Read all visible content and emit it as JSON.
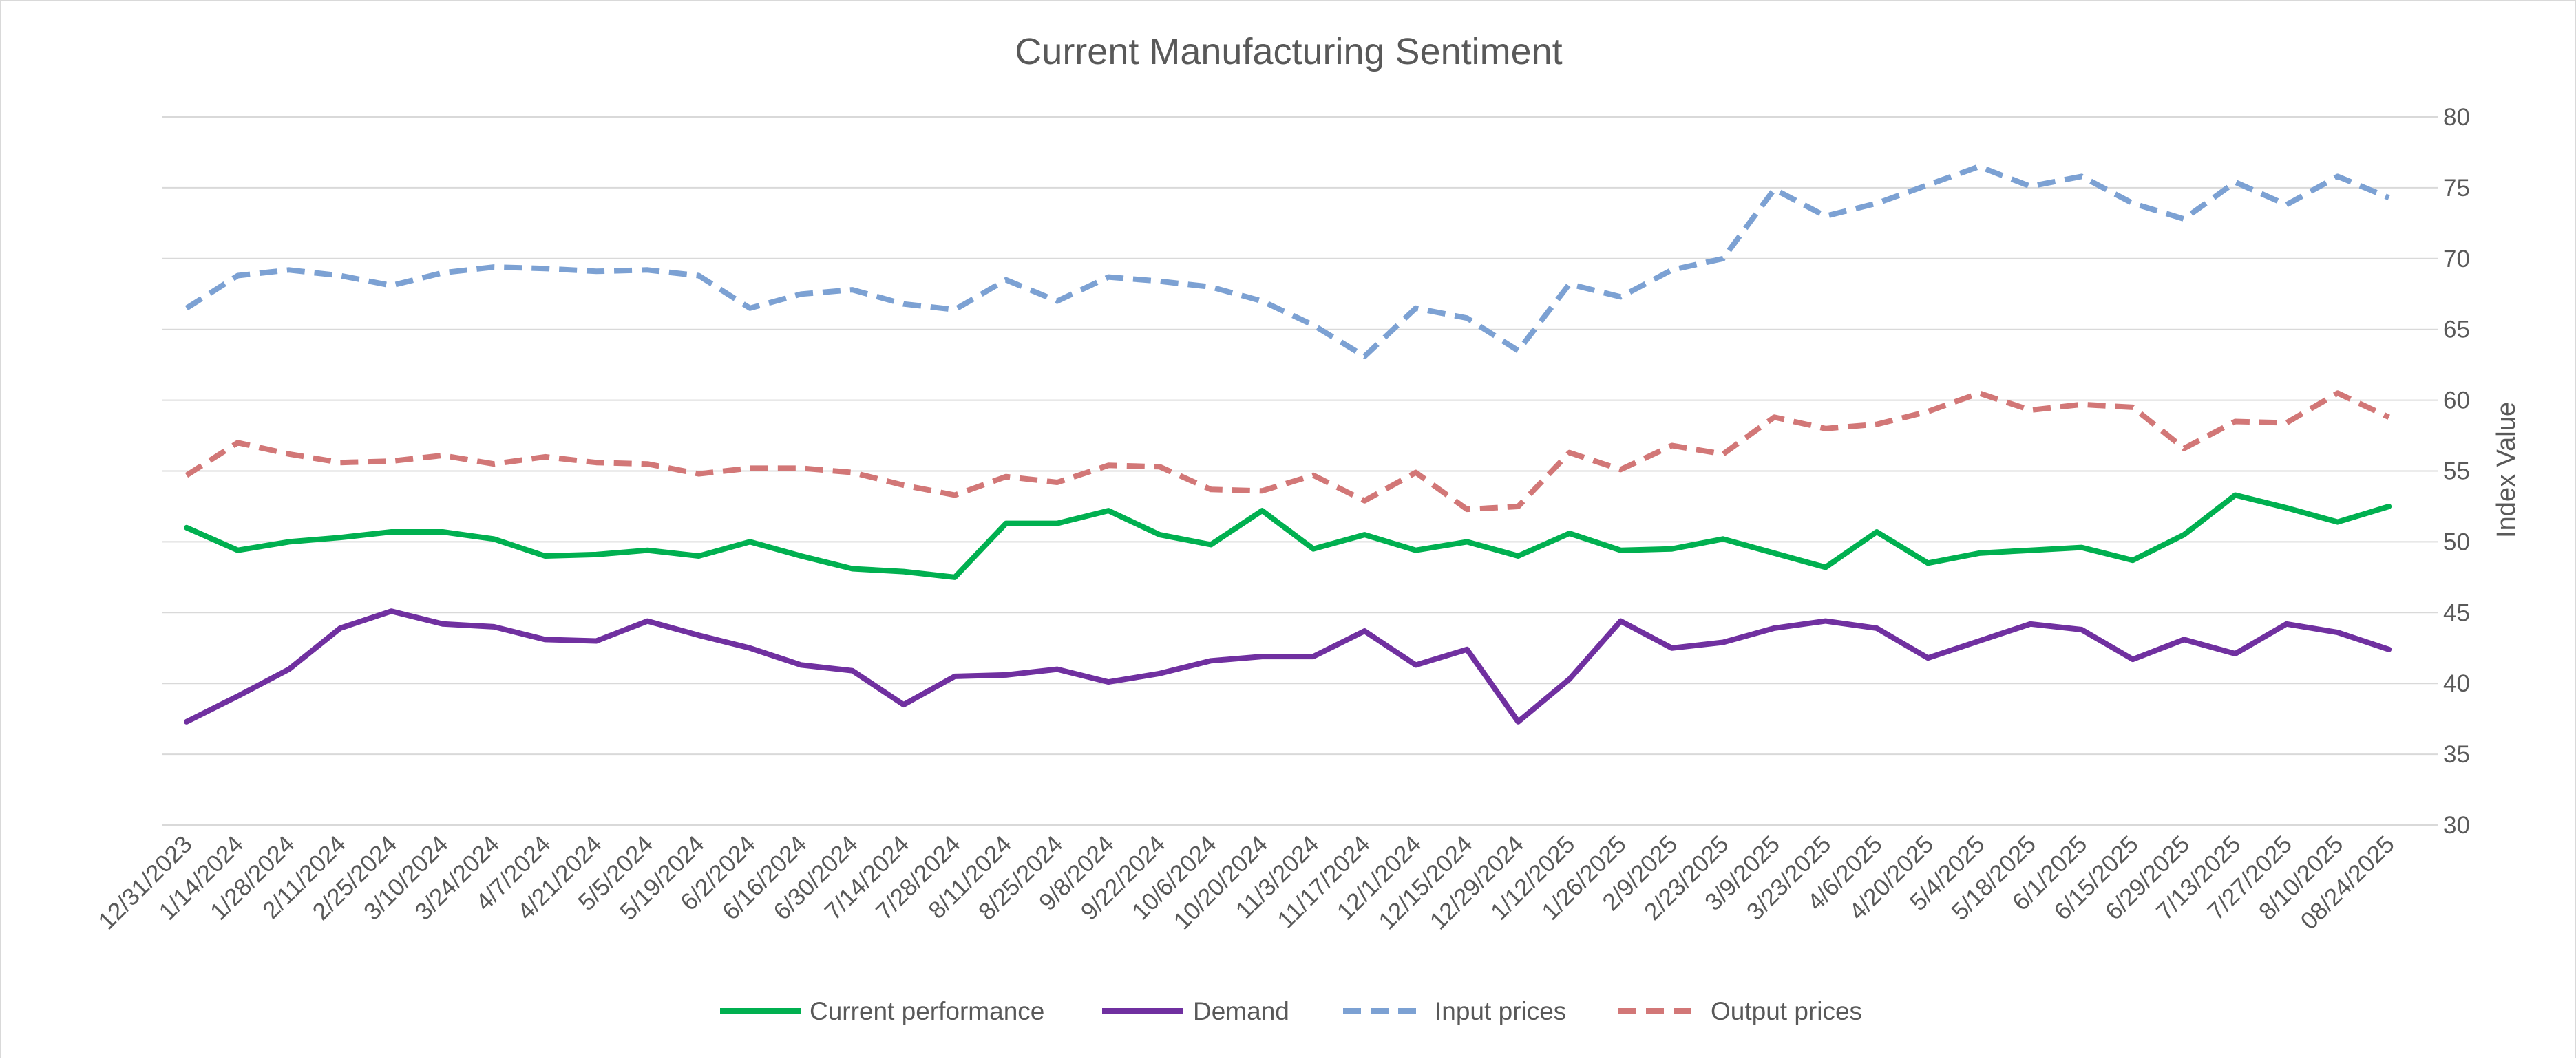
{
  "chart_data": {
    "type": "line",
    "title": "Current Manufacturing Sentiment",
    "xlabel": "",
    "ylabel": "Index Value",
    "ylim": [
      30,
      80
    ],
    "yticks": [
      30,
      35,
      40,
      45,
      50,
      55,
      60,
      65,
      70,
      75,
      80
    ],
    "y_axis_side": "right",
    "grid": true,
    "legend_position": "bottom",
    "categories": [
      "12/31/2023",
      "1/14/2024",
      "1/28/2024",
      "2/11/2024",
      "2/25/2024",
      "3/10/2024",
      "3/24/2024",
      "4/7/2024",
      "4/21/2024",
      "5/5/2024",
      "5/19/2024",
      "6/2/2024",
      "6/16/2024",
      "6/30/2024",
      "7/14/2024",
      "7/28/2024",
      "8/11/2024",
      "8/25/2024",
      "9/8/2024",
      "9/22/2024",
      "10/6/2024",
      "10/20/2024",
      "11/3/2024",
      "11/17/2024",
      "12/1/2024",
      "12/15/2024",
      "12/29/2024",
      "1/12/2025",
      "1/26/2025",
      "2/9/2025",
      "2/23/2025",
      "3/9/2025",
      "3/23/2025",
      "4/6/2025",
      "4/20/2025",
      "5/4/2025",
      "5/18/2025",
      "6/1/2025",
      "6/15/2025",
      "6/29/2025",
      "7/13/2025",
      "7/27/2025",
      "8/10/2025",
      "08/24/2025"
    ],
    "series": [
      {
        "name": "Current performance",
        "color": "#00b050",
        "dash": false,
        "values": [
          51.0,
          49.4,
          50.0,
          50.3,
          50.7,
          50.7,
          50.2,
          49.0,
          49.1,
          49.4,
          49.0,
          50.0,
          49.0,
          48.1,
          47.9,
          47.5,
          51.3,
          51.3,
          52.2,
          50.5,
          49.8,
          52.2,
          49.5,
          50.5,
          49.4,
          50.0,
          49.0,
          50.6,
          49.4,
          49.5,
          50.2,
          49.2,
          48.2,
          50.7,
          48.5,
          49.2,
          49.4,
          49.6,
          48.7,
          50.5,
          53.3,
          52.4,
          51.4,
          52.5
        ]
      },
      {
        "name": "Demand",
        "color": "#7030a0",
        "dash": false,
        "values": [
          37.3,
          39.1,
          41.0,
          43.9,
          45.1,
          44.2,
          44.0,
          43.1,
          43.0,
          44.4,
          43.4,
          42.5,
          41.3,
          40.9,
          38.5,
          40.5,
          40.6,
          41.0,
          40.1,
          40.7,
          41.6,
          41.9,
          41.9,
          43.7,
          41.3,
          42.4,
          37.3,
          40.3,
          44.4,
          42.5,
          42.9,
          43.9,
          44.4,
          43.9,
          41.8,
          43.0,
          44.2,
          43.8,
          41.7,
          43.1,
          42.1,
          44.2,
          43.6,
          42.4
        ]
      },
      {
        "name": "Input prices",
        "color": "#7ca1d3",
        "dash": true,
        "values": [
          66.5,
          68.8,
          69.2,
          68.8,
          68.1,
          69.0,
          69.4,
          69.3,
          69.1,
          69.2,
          68.8,
          66.5,
          67.5,
          67.8,
          66.8,
          66.4,
          68.5,
          67.0,
          68.7,
          68.4,
          68.0,
          67.0,
          65.3,
          63.1,
          66.5,
          65.8,
          63.5,
          68.2,
          67.3,
          69.2,
          70.0,
          74.9,
          73.0,
          73.9,
          75.2,
          76.5,
          75.1,
          75.8,
          73.9,
          72.8,
          75.4,
          73.8,
          75.8,
          74.3
        ]
      },
      {
        "name": "Output prices",
        "color": "#d27777",
        "dash": true,
        "values": [
          54.7,
          57.0,
          56.2,
          55.6,
          55.7,
          56.1,
          55.5,
          56.0,
          55.6,
          55.5,
          54.8,
          55.2,
          55.2,
          54.9,
          54.0,
          53.3,
          54.6,
          54.2,
          55.4,
          55.3,
          53.7,
          53.6,
          54.7,
          52.9,
          54.9,
          52.3,
          52.5,
          56.3,
          55.1,
          56.8,
          56.2,
          58.8,
          58.0,
          58.3,
          59.2,
          60.5,
          59.3,
          59.7,
          59.5,
          56.6,
          58.5,
          58.4,
          60.5,
          58.8
        ]
      }
    ]
  }
}
